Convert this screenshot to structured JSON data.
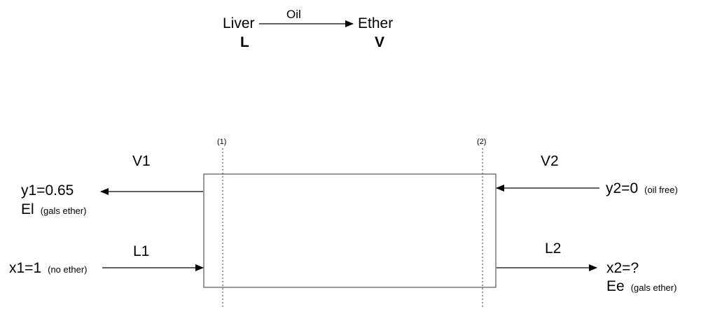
{
  "top": {
    "from_label": "Liver",
    "from_symbol": "L",
    "transfer_label": "Oil",
    "to_label": "Ether",
    "to_symbol": "V"
  },
  "section_markers": {
    "left": "(1)",
    "right": "(2)"
  },
  "streams": {
    "v1": "V1",
    "v2": "V2",
    "l1": "L1",
    "l2": "L2"
  },
  "left_outlet": {
    "y1_text": "y1=0.65",
    "el_text": "El",
    "el_note": "(gals ether)"
  },
  "left_inlet": {
    "x1_text": "x1=1",
    "x1_note": "(no ether)"
  },
  "right_inlet": {
    "y2_text": "y2=0",
    "y2_note": "(oil free)"
  },
  "right_outlet": {
    "x2_text": "x2=?",
    "ee_text": "Ee",
    "ee_note": "(gals ether)"
  }
}
